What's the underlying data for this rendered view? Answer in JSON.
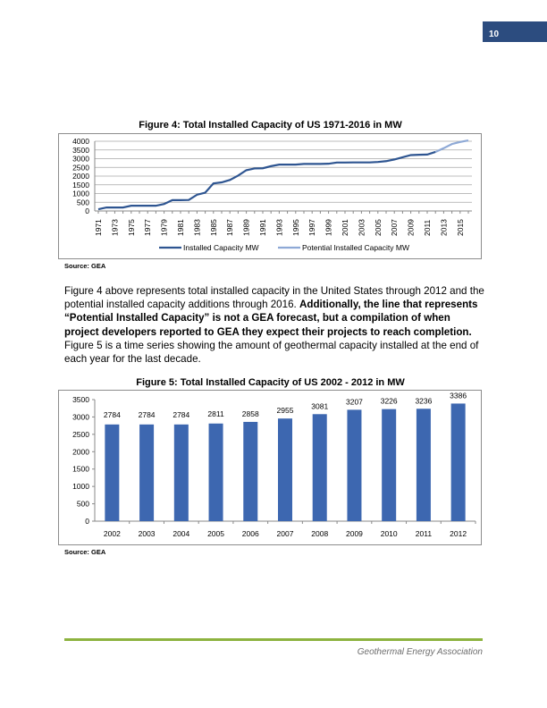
{
  "header": {
    "page_number": "10"
  },
  "figure4": {
    "title": "Figure 4: Total Installed Capacity of US 1971-2016 in MW",
    "source": "Source: GEA"
  },
  "paragraph": {
    "part1": "Figure 4 above represents total installed capacity in the United States through 2012 and the potential installed capacity additions through 2016.  ",
    "bold": "Additionally, the line that represents “Potential Installed Capacity” is not a GEA forecast, but a compilation of when project developers reported to GEA they expect their projects to reach completion.",
    "part2": "  Figure 5 is a time series showing the amount of geothermal capacity installed at the end of each year for the last decade."
  },
  "figure5": {
    "title": "Figure 5: Total Installed Capacity of US 2002 - 2012 in MW",
    "source": "Source: GEA"
  },
  "footer": {
    "text": "Geothermal Energy Association",
    "line_color": "#8db33f"
  },
  "chart_data": [
    {
      "type": "line",
      "title": "Figure 4: Total Installed Capacity of US 1971-2016 in MW",
      "ylim": [
        0,
        4000
      ],
      "yticks": [
        0,
        500,
        1000,
        1500,
        2000,
        2500,
        3000,
        3500,
        4000
      ],
      "xtick_labels": [
        "1971",
        "1973",
        "1975",
        "1977",
        "1979",
        "1981",
        "1983",
        "1985",
        "1987",
        "1989",
        "1991",
        "1993",
        "1995",
        "1997",
        "1999",
        "2001",
        "2003",
        "2005",
        "2007",
        "2009",
        "2011",
        "2013",
        "2015"
      ],
      "grid": true,
      "legend": "bottom",
      "series": [
        {
          "name": "Installed Capacity MW",
          "color": "#2e5591",
          "x": [
            1971,
            1972,
            1973,
            1974,
            1975,
            1976,
            1977,
            1978,
            1979,
            1980,
            1981,
            1982,
            1983,
            1984,
            1985,
            1986,
            1987,
            1988,
            1989,
            1990,
            1991,
            1992,
            1993,
            1994,
            1995,
            1996,
            1997,
            1998,
            1999,
            2000,
            2001,
            2002,
            2003,
            2004,
            2005,
            2006,
            2007,
            2008,
            2009,
            2010,
            2011,
            2012
          ],
          "values": [
            100,
            200,
            200,
            200,
            300,
            300,
            300,
            300,
            400,
            620,
            620,
            630,
            930,
            1050,
            1580,
            1640,
            1780,
            2030,
            2340,
            2440,
            2450,
            2570,
            2660,
            2660,
            2660,
            2700,
            2700,
            2700,
            2710,
            2780,
            2780,
            2784,
            2784,
            2784,
            2811,
            2858,
            2955,
            3081,
            3207,
            3226,
            3236,
            3386
          ]
        },
        {
          "name": "Potential Installed Capacity MW",
          "color": "#8ea9d6",
          "x": [
            2012,
            2013,
            2014,
            2015,
            2016
          ],
          "values": [
            3386,
            3600,
            3840,
            3960,
            4050
          ]
        }
      ]
    },
    {
      "type": "bar",
      "title": "Figure 5: Total Installed Capacity of US 2002 - 2012 in MW",
      "categories": [
        "2002",
        "2003",
        "2004",
        "2005",
        "2006",
        "2007",
        "2008",
        "2009",
        "2010",
        "2011",
        "2012"
      ],
      "values": [
        2784,
        2784,
        2784,
        2811,
        2858,
        2955,
        3081,
        3207,
        3226,
        3236,
        3386
      ],
      "ylim": [
        0,
        3500
      ],
      "yticks": [
        0,
        500,
        1000,
        1500,
        2000,
        2500,
        3000,
        3500
      ],
      "grid": false,
      "color": "#3d67b0"
    }
  ]
}
